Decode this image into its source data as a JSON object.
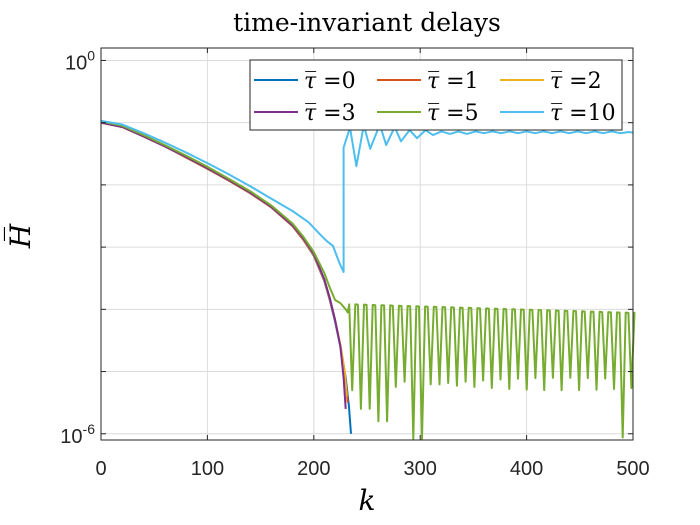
{
  "chart_data": {
    "type": "line",
    "title": "time-invariant delays",
    "xlabel": "k",
    "ylabel": "H̅",
    "xlim": [
      0,
      500
    ],
    "ylim_log10": [
      -6.1,
      0.2
    ],
    "yscale": "log",
    "x_ticks": [
      0,
      100,
      200,
      300,
      400,
      500
    ],
    "x_tick_labels": [
      "0",
      "100",
      "200",
      "300",
      "400",
      "500"
    ],
    "y_ticks": [
      0,
      -6
    ],
    "y_tick_labels": [
      {
        "base": "10",
        "exp": "0"
      },
      {
        "base": "10",
        "exp": "-6"
      }
    ],
    "grid": true,
    "legend": {
      "position": "top-right",
      "columns": 3,
      "symbol": "τ̅",
      "separator": " ="
    },
    "series": [
      {
        "name": "0",
        "color": "#0072BD",
        "points": [
          [
            0,
            -1.0
          ],
          [
            20,
            -1.07
          ],
          [
            40,
            -1.22
          ],
          [
            60,
            -1.38
          ],
          [
            80,
            -1.56
          ],
          [
            100,
            -1.74
          ],
          [
            120,
            -1.93
          ],
          [
            140,
            -2.13
          ],
          [
            160,
            -2.36
          ],
          [
            180,
            -2.66
          ],
          [
            190,
            -2.88
          ],
          [
            200,
            -3.14
          ],
          [
            210,
            -3.55
          ],
          [
            215,
            -3.85
          ],
          [
            220,
            -4.2
          ],
          [
            225,
            -4.6
          ],
          [
            230,
            -5.1
          ],
          [
            233,
            -5.55
          ],
          [
            235,
            -6.0
          ]
        ]
      },
      {
        "name": "1",
        "color": "#D95319",
        "points": [
          [
            0,
            -1.0
          ],
          [
            20,
            -1.07
          ],
          [
            40,
            -1.22
          ],
          [
            60,
            -1.38
          ],
          [
            80,
            -1.56
          ],
          [
            100,
            -1.74
          ],
          [
            120,
            -1.93
          ],
          [
            140,
            -2.13
          ],
          [
            160,
            -2.36
          ],
          [
            180,
            -2.66
          ],
          [
            190,
            -2.88
          ],
          [
            200,
            -3.13
          ],
          [
            210,
            -3.54
          ],
          [
            215,
            -3.84
          ],
          [
            220,
            -4.18
          ],
          [
            225,
            -4.58
          ],
          [
            229,
            -5.0
          ],
          [
            232,
            -5.5
          ]
        ]
      },
      {
        "name": "2",
        "color": "#EDB120",
        "points": [
          [
            0,
            -1.0
          ],
          [
            20,
            -1.07
          ],
          [
            40,
            -1.22
          ],
          [
            60,
            -1.38
          ],
          [
            80,
            -1.55
          ],
          [
            100,
            -1.73
          ],
          [
            120,
            -1.92
          ],
          [
            140,
            -2.12
          ],
          [
            160,
            -2.35
          ],
          [
            180,
            -2.65
          ],
          [
            190,
            -2.87
          ],
          [
            200,
            -3.12
          ],
          [
            210,
            -3.53
          ],
          [
            215,
            -3.82
          ],
          [
            220,
            -4.17
          ],
          [
            225,
            -4.57
          ],
          [
            229,
            -5.0
          ],
          [
            231,
            -5.4
          ]
        ]
      },
      {
        "name": "3",
        "color": "#7E2F8E",
        "points": [
          [
            0,
            -1.0
          ],
          [
            20,
            -1.07
          ],
          [
            40,
            -1.22
          ],
          [
            60,
            -1.38
          ],
          [
            80,
            -1.55
          ],
          [
            100,
            -1.73
          ],
          [
            120,
            -1.92
          ],
          [
            140,
            -2.12
          ],
          [
            160,
            -2.35
          ],
          [
            180,
            -2.65
          ],
          [
            190,
            -2.86
          ],
          [
            200,
            -3.11
          ],
          [
            210,
            -3.52
          ],
          [
            215,
            -3.82
          ],
          [
            220,
            -4.17
          ],
          [
            225,
            -4.6
          ],
          [
            228,
            -5.1
          ],
          [
            230,
            -5.6
          ]
        ]
      },
      {
        "name": "5",
        "color": "#77AC30",
        "osc": {
          "start": 232,
          "end": 500,
          "period": 8.2,
          "top_start": -3.92,
          "top_end": -4.06,
          "floor": -5.2,
          "dips": [
            [
              240,
              -5.3
            ],
            [
              248,
              -5.6
            ],
            [
              264,
              -5.8
            ],
            [
              297,
              -6.08
            ],
            [
              490,
              -6.06
            ]
          ]
        },
        "points": [
          [
            0,
            -0.98
          ],
          [
            20,
            -1.05
          ],
          [
            40,
            -1.2
          ],
          [
            60,
            -1.36
          ],
          [
            80,
            -1.53
          ],
          [
            100,
            -1.71
          ],
          [
            120,
            -1.9
          ],
          [
            140,
            -2.1
          ],
          [
            160,
            -2.33
          ],
          [
            180,
            -2.62
          ],
          [
            190,
            -2.83
          ],
          [
            200,
            -3.08
          ],
          [
            210,
            -3.42
          ],
          [
            215,
            -3.65
          ],
          [
            220,
            -3.85
          ],
          [
            225,
            -3.9
          ],
          [
            230,
            -4.0
          ],
          [
            232,
            -4.05
          ]
        ]
      },
      {
        "name": "10",
        "color": "#4DBEEE",
        "osc": {
          "start": 228,
          "end": 500,
          "waves": [
            [
              228,
              -1.4
            ],
            [
              234,
              -1.08
            ],
            [
              240,
              -1.7
            ],
            [
              247,
              -1.04
            ],
            [
              253,
              -1.42
            ],
            [
              262,
              -1.03
            ],
            [
              268,
              -1.36
            ],
            [
              276,
              -1.07
            ],
            [
              282,
              -1.3
            ],
            [
              290,
              -1.12
            ],
            [
              297,
              -1.25
            ],
            [
              305,
              -1.12
            ],
            [
              312,
              -1.2
            ],
            [
              320,
              -1.14
            ],
            [
              328,
              -1.18
            ],
            [
              336,
              -1.14
            ],
            [
              344,
              -1.18
            ],
            [
              352,
              -1.14
            ],
            [
              360,
              -1.17
            ],
            [
              368,
              -1.14
            ],
            [
              376,
              -1.17
            ],
            [
              384,
              -1.14
            ],
            [
              392,
              -1.17
            ],
            [
              400,
              -1.14
            ],
            [
              408,
              -1.17
            ],
            [
              416,
              -1.14
            ],
            [
              424,
              -1.17
            ],
            [
              432,
              -1.14
            ],
            [
              440,
              -1.17
            ],
            [
              448,
              -1.14
            ],
            [
              456,
              -1.17
            ],
            [
              464,
              -1.14
            ],
            [
              472,
              -1.17
            ],
            [
              480,
              -1.14
            ],
            [
              488,
              -1.17
            ],
            [
              496,
              -1.15
            ],
            [
              500,
              -1.16
            ]
          ]
        },
        "points": [
          [
            0,
            -0.97
          ],
          [
            20,
            -1.03
          ],
          [
            40,
            -1.17
          ],
          [
            60,
            -1.32
          ],
          [
            80,
            -1.48
          ],
          [
            100,
            -1.65
          ],
          [
            120,
            -1.83
          ],
          [
            140,
            -2.02
          ],
          [
            160,
            -2.22
          ],
          [
            180,
            -2.42
          ],
          [
            195,
            -2.6
          ],
          [
            205,
            -2.78
          ],
          [
            212,
            -2.9
          ],
          [
            218,
            -2.98
          ],
          [
            224,
            -3.25
          ],
          [
            228,
            -3.4
          ]
        ]
      }
    ]
  }
}
